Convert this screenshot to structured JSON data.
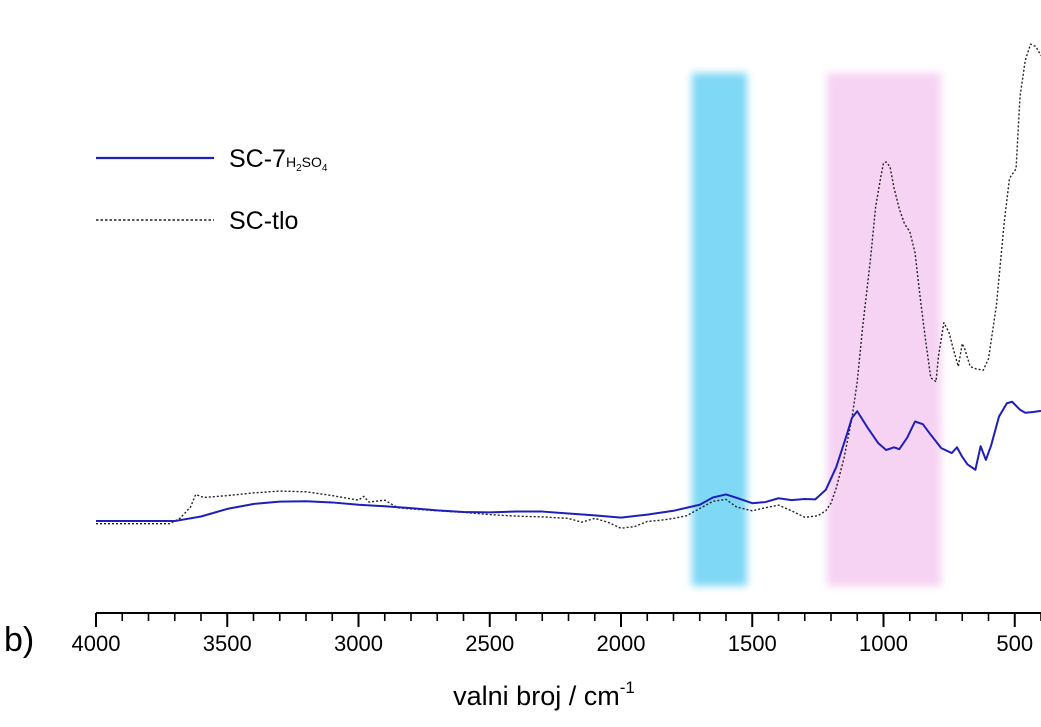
{
  "panel_label": "b)",
  "chart_data": {
    "type": "line",
    "xlabel": "valni broj / cm",
    "xlabel_superscript": "-1",
    "xlim": [
      4000,
      400
    ],
    "x_ticks": [
      4000,
      3500,
      3000,
      2500,
      2000,
      1500,
      1000,
      500
    ],
    "y_axis_visible": false,
    "grid": false,
    "legend_position": "top-left",
    "highlight_bands": [
      {
        "x_from": 1730,
        "x_to": 1520,
        "color": "#7fd8f5"
      },
      {
        "x_from": 1215,
        "x_to": 780,
        "color": "#f6d3f3"
      }
    ],
    "series": [
      {
        "name_main": "SC-7",
        "name_sub": "H2SO4",
        "name_sub_parts": [
          [
            "H",
            ""
          ],
          [
            "2",
            "sub"
          ],
          [
            "SO",
            ""
          ],
          [
            "4",
            "sub"
          ]
        ],
        "color": "#1f1fb8",
        "style": "solid",
        "points": [
          [
            4000,
            0.013
          ],
          [
            3700,
            0.013
          ],
          [
            3600,
            0.025
          ],
          [
            3500,
            0.045
          ],
          [
            3400,
            0.058
          ],
          [
            3300,
            0.064
          ],
          [
            3200,
            0.065
          ],
          [
            3100,
            0.062
          ],
          [
            3000,
            0.056
          ],
          [
            2900,
            0.052
          ],
          [
            2800,
            0.047
          ],
          [
            2700,
            0.041
          ],
          [
            2600,
            0.037
          ],
          [
            2500,
            0.036
          ],
          [
            2400,
            0.038
          ],
          [
            2300,
            0.038
          ],
          [
            2200,
            0.033
          ],
          [
            2100,
            0.028
          ],
          [
            2000,
            0.022
          ],
          [
            1900,
            0.03
          ],
          [
            1800,
            0.04
          ],
          [
            1700,
            0.056
          ],
          [
            1650,
            0.075
          ],
          [
            1600,
            0.083
          ],
          [
            1550,
            0.072
          ],
          [
            1500,
            0.06
          ],
          [
            1450,
            0.063
          ],
          [
            1400,
            0.073
          ],
          [
            1350,
            0.068
          ],
          [
            1300,
            0.071
          ],
          [
            1260,
            0.07
          ],
          [
            1220,
            0.095
          ],
          [
            1180,
            0.155
          ],
          [
            1140,
            0.24
          ],
          [
            1120,
            0.285
          ],
          [
            1100,
            0.302
          ],
          [
            1060,
            0.258
          ],
          [
            1020,
            0.218
          ],
          [
            990,
            0.2
          ],
          [
            960,
            0.207
          ],
          [
            940,
            0.202
          ],
          [
            910,
            0.232
          ],
          [
            880,
            0.275
          ],
          [
            850,
            0.268
          ],
          [
            820,
            0.24
          ],
          [
            780,
            0.205
          ],
          [
            740,
            0.192
          ],
          [
            720,
            0.207
          ],
          [
            700,
            0.182
          ],
          [
            680,
            0.162
          ],
          [
            650,
            0.148
          ],
          [
            630,
            0.21
          ],
          [
            610,
            0.174
          ],
          [
            590,
            0.212
          ],
          [
            560,
            0.288
          ],
          [
            530,
            0.323
          ],
          [
            510,
            0.327
          ],
          [
            480,
            0.306
          ],
          [
            460,
            0.298
          ],
          [
            430,
            0.3
          ],
          [
            400,
            0.303
          ]
        ]
      },
      {
        "name": "SC-tlo",
        "color": "#222222",
        "style": "dotted",
        "points": [
          [
            4000,
            0.006
          ],
          [
            3720,
            0.006
          ],
          [
            3680,
            0.02
          ],
          [
            3640,
            0.05
          ],
          [
            3620,
            0.083
          ],
          [
            3590,
            0.075
          ],
          [
            3500,
            0.08
          ],
          [
            3400,
            0.087
          ],
          [
            3300,
            0.092
          ],
          [
            3200,
            0.09
          ],
          [
            3100,
            0.08
          ],
          [
            3000,
            0.068
          ],
          [
            2980,
            0.078
          ],
          [
            2960,
            0.063
          ],
          [
            2900,
            0.068
          ],
          [
            2850,
            0.048
          ],
          [
            2800,
            0.045
          ],
          [
            2700,
            0.04
          ],
          [
            2600,
            0.036
          ],
          [
            2500,
            0.03
          ],
          [
            2400,
            0.026
          ],
          [
            2300,
            0.024
          ],
          [
            2200,
            0.02
          ],
          [
            2150,
            0.01
          ],
          [
            2100,
            0.02
          ],
          [
            2050,
            0.01
          ],
          [
            2000,
            -0.006
          ],
          [
            1980,
            -0.004
          ],
          [
            1950,
            -0.002
          ],
          [
            1900,
            0.012
          ],
          [
            1850,
            0.015
          ],
          [
            1800,
            0.02
          ],
          [
            1750,
            0.027
          ],
          [
            1700,
            0.046
          ],
          [
            1650,
            0.065
          ],
          [
            1600,
            0.07
          ],
          [
            1560,
            0.05
          ],
          [
            1500,
            0.04
          ],
          [
            1450,
            0.048
          ],
          [
            1400,
            0.055
          ],
          [
            1350,
            0.04
          ],
          [
            1300,
            0.023
          ],
          [
            1250,
            0.027
          ],
          [
            1220,
            0.04
          ],
          [
            1200,
            0.06
          ],
          [
            1180,
            0.1
          ],
          [
            1150,
            0.18
          ],
          [
            1120,
            0.285
          ],
          [
            1100,
            0.38
          ],
          [
            1080,
            0.52
          ],
          [
            1050,
            0.7
          ],
          [
            1030,
            0.84
          ],
          [
            1010,
            0.92
          ],
          [
            1000,
            0.955
          ],
          [
            990,
            0.958
          ],
          [
            975,
            0.945
          ],
          [
            960,
            0.89
          ],
          [
            940,
            0.835
          ],
          [
            920,
            0.795
          ],
          [
            900,
            0.775
          ],
          [
            880,
            0.72
          ],
          [
            860,
            0.6
          ],
          [
            840,
            0.49
          ],
          [
            820,
            0.39
          ],
          [
            800,
            0.38
          ],
          [
            790,
            0.45
          ],
          [
            770,
            0.535
          ],
          [
            750,
            0.508
          ],
          [
            730,
            0.455
          ],
          [
            715,
            0.42
          ],
          [
            700,
            0.48
          ],
          [
            690,
            0.465
          ],
          [
            670,
            0.42
          ],
          [
            650,
            0.414
          ],
          [
            620,
            0.41
          ],
          [
            600,
            0.44
          ],
          [
            570,
            0.58
          ],
          [
            540,
            0.8
          ],
          [
            520,
            0.915
          ],
          [
            505,
            0.93
          ],
          [
            495,
            0.94
          ],
          [
            480,
            1.13
          ],
          [
            460,
            1.225
          ],
          [
            440,
            1.268
          ],
          [
            420,
            1.262
          ],
          [
            400,
            1.238
          ]
        ]
      }
    ]
  }
}
